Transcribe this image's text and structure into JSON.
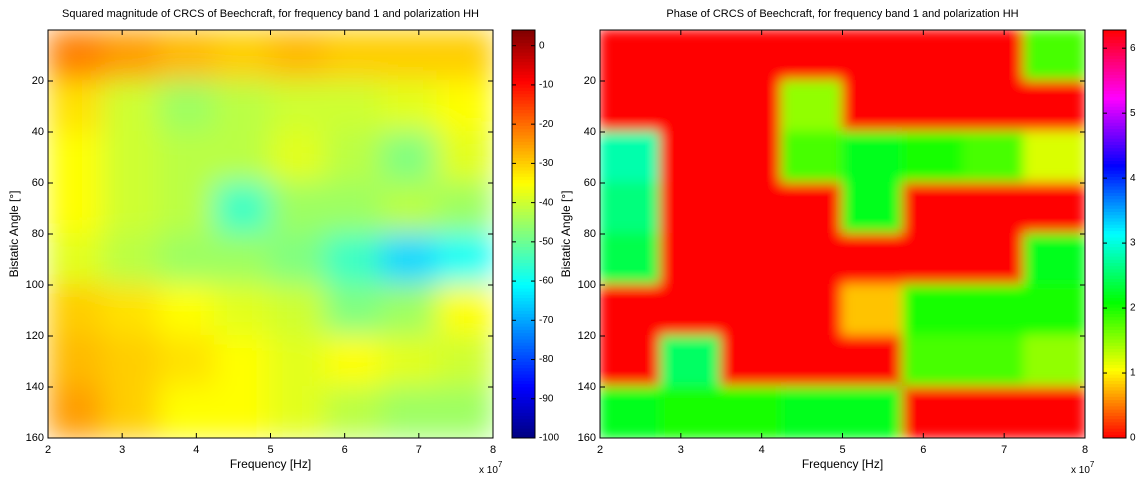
{
  "chart_data": [
    {
      "type": "heatmap",
      "title": "Squared magnitude of CRCS of Beechcraft, for frequency band 1 and polarization HH",
      "xlabel": "Frequency [Hz]",
      "ylabel": "Bistatic Angle [°]",
      "x_offset_label": "x 10",
      "x_offset_exponent": 7,
      "x": [
        2.375,
        3.125,
        3.875,
        4.625,
        5.375,
        6.125,
        6.875,
        7.625
      ],
      "y": [
        10,
        30,
        50,
        70,
        90,
        110,
        130,
        150
      ],
      "z": [
        [
          -22,
          -25,
          -28,
          -30,
          -28,
          -30,
          -30,
          -30
        ],
        [
          -32,
          -40,
          -45,
          -42,
          -40,
          -40,
          -38,
          -35
        ],
        [
          -35,
          -40,
          -42,
          -42,
          -38,
          -42,
          -48,
          -38
        ],
        [
          -35,
          -40,
          -42,
          -55,
          -45,
          -45,
          -42,
          -45
        ],
        [
          -38,
          -42,
          -45,
          -45,
          -48,
          -55,
          -65,
          -60
        ],
        [
          -30,
          -32,
          -35,
          -38,
          -40,
          -48,
          -45,
          -35
        ],
        [
          -28,
          -30,
          -32,
          -35,
          -38,
          -35,
          -38,
          -40
        ],
        [
          -25,
          -30,
          -35,
          -35,
          -38,
          -42,
          -45,
          -45
        ]
      ],
      "xlim": [
        2,
        8
      ],
      "ylim": [
        0,
        160
      ],
      "y_reversed": true,
      "xticks": [
        2,
        3,
        4,
        5,
        6,
        7,
        8
      ],
      "yticks": [
        20,
        40,
        60,
        80,
        100,
        120,
        140,
        160
      ],
      "colormap": "jet",
      "clim": [
        -100,
        4
      ],
      "cticks": [
        0,
        -10,
        -20,
        -30,
        -40,
        -50,
        -60,
        -70,
        -80,
        -90,
        -100
      ]
    },
    {
      "type": "heatmap",
      "title": "Phase of CRCS of Beechcraft, for frequency band 1 and polarization HH",
      "xlabel": "Frequency [Hz]",
      "ylabel": "Bistatic Angle [°]",
      "x_offset_label": "x 10",
      "x_offset_exponent": 7,
      "x": [
        2.375,
        3.125,
        3.875,
        4.625,
        5.375,
        6.125,
        6.875,
        7.625
      ],
      "y": [
        10,
        30,
        50,
        70,
        90,
        110,
        130,
        150
      ],
      "z": [
        [
          0,
          0,
          0,
          0,
          0,
          0,
          0,
          1.8
        ],
        [
          0,
          0,
          0,
          1.5,
          0,
          0,
          0,
          0
        ],
        [
          2.8,
          0,
          0,
          1.8,
          2.2,
          2,
          1.8,
          1.2
        ],
        [
          2.6,
          0,
          0,
          0,
          2.2,
          0,
          0,
          0
        ],
        [
          2.4,
          0,
          0,
          0,
          0,
          0,
          0,
          2.2
        ],
        [
          0,
          0,
          0,
          0,
          0.8,
          2,
          2,
          2
        ],
        [
          0,
          2.5,
          0,
          0,
          0,
          1.8,
          1.8,
          1.5
        ],
        [
          2.2,
          2,
          2,
          2.2,
          2.2,
          0,
          0,
          0
        ]
      ],
      "xlim": [
        2,
        8
      ],
      "ylim": [
        0,
        160
      ],
      "y_reversed": true,
      "xticks": [
        2,
        3,
        4,
        5,
        6,
        7,
        8
      ],
      "yticks": [
        20,
        40,
        60,
        80,
        100,
        120,
        140,
        160
      ],
      "colormap": "hsv",
      "clim": [
        0,
        6.28
      ],
      "cticks": [
        0,
        1,
        2,
        3,
        4,
        5,
        6
      ]
    }
  ]
}
